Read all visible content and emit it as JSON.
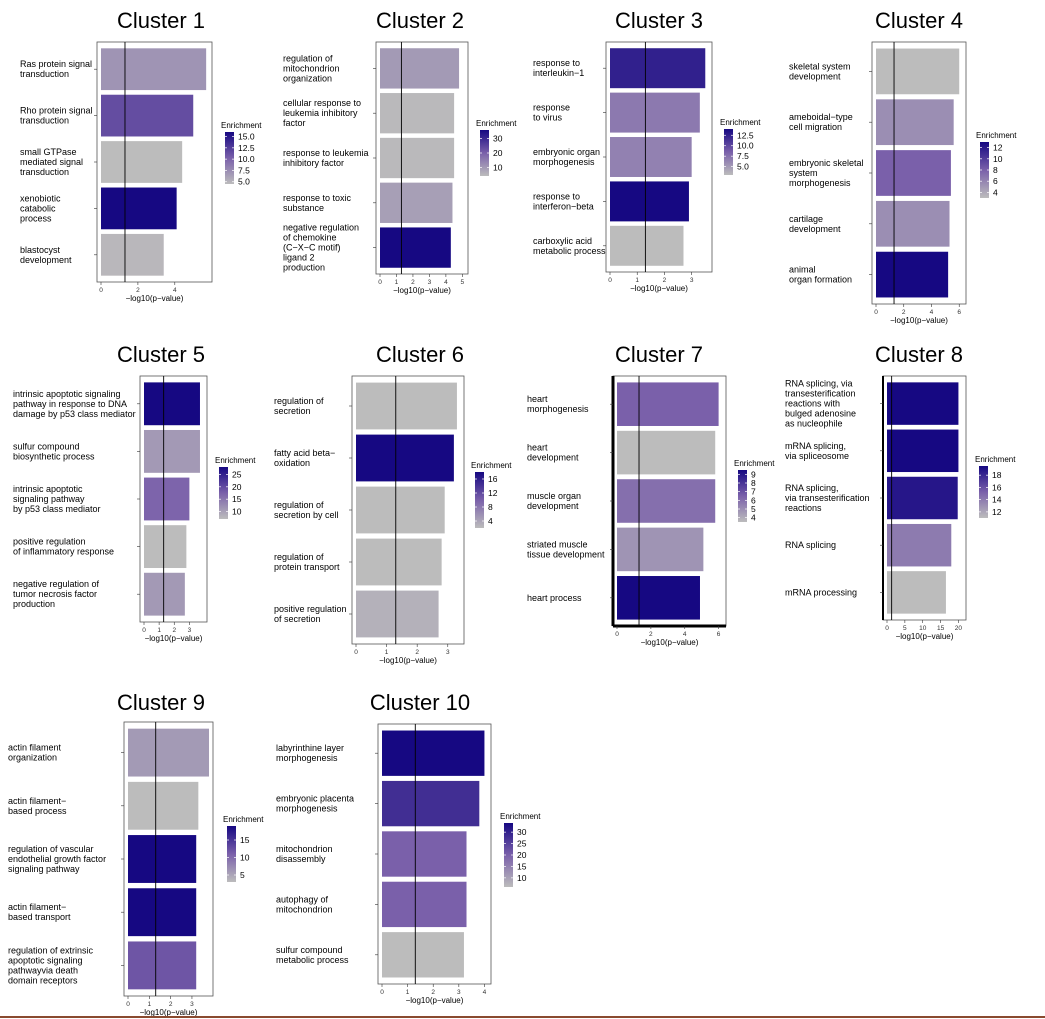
{
  "chart_data": [
    {
      "type": "bar",
      "title": "Cluster 1",
      "xlabel": "−log10(p−value)",
      "xticks": [
        0,
        2,
        4
      ],
      "xlim": [
        0,
        5.8
      ],
      "threshold": 1.3,
      "legend_title": "Enrichment",
      "legend_ticks": [
        15.0,
        12.5,
        10.0,
        7.5,
        5.0
      ],
      "legend_tick_labels": [
        "15.0",
        "12.5",
        "10.0",
        "7.5",
        "5.0"
      ],
      "enrichment_range": [
        4.5,
        16
      ],
      "categories": [
        [
          "Ras protein signal",
          "transduction"
        ],
        [
          "Rho protein signal",
          "transduction"
        ],
        [
          "small GTPase",
          "mediated signal",
          "transduction"
        ],
        [
          "xenobiotic",
          "catabolic",
          "process"
        ],
        [
          "blastocyst",
          "development"
        ]
      ],
      "values": [
        5.7,
        5.0,
        4.4,
        4.1,
        3.4
      ],
      "enrichment": [
        7,
        11.5,
        4.5,
        16,
        4.8
      ]
    },
    {
      "type": "bar",
      "title": "Cluster 2",
      "xlabel": "−log10(p−value)",
      "xticks": [
        0,
        1,
        2,
        3,
        4,
        5
      ],
      "xlim": [
        0,
        5.1
      ],
      "threshold": 1.3,
      "legend_title": "Enrichment",
      "legend_ticks": [
        30,
        20,
        10
      ],
      "legend_tick_labels": [
        "30",
        "20",
        "10"
      ],
      "enrichment_range": [
        4,
        36
      ],
      "categories": [
        [
          "regulation of",
          "mitochondrion",
          "organization"
        ],
        [
          "cellular response to",
          "leukemia inhibitory",
          "factor"
        ],
        [
          "response to leukemia",
          "inhibitory factor"
        ],
        [
          "response to toxic",
          "substance"
        ],
        [
          "negative regulation",
          "of chemokine",
          "(C−X−C motif)",
          "ligand 2",
          "production"
        ]
      ],
      "values": [
        4.8,
        4.5,
        4.5,
        4.4,
        4.3
      ],
      "enrichment": [
        10,
        4.5,
        4.5,
        9,
        36
      ]
    },
    {
      "type": "bar",
      "title": "Cluster 3",
      "xlabel": "−log10(p−value)",
      "xticks": [
        0,
        1,
        2,
        3
      ],
      "xlim": [
        0,
        3.6
      ],
      "threshold": 1.3,
      "legend_title": "Enrichment",
      "legend_ticks": [
        12.5,
        10.0,
        7.5,
        5.0
      ],
      "legend_tick_labels": [
        "12.5",
        "10.0",
        "7.5",
        "5.0"
      ],
      "enrichment_range": [
        3,
        14
      ],
      "categories": [
        [
          "response to",
          "interleukin−1"
        ],
        [
          "response",
          "to virus"
        ],
        [
          "embryonic organ",
          "morphogenesis"
        ],
        [
          "response to",
          "interferon−beta"
        ],
        [
          "carboxylic acid",
          "metabolic process"
        ]
      ],
      "values": [
        3.5,
        3.3,
        3.0,
        2.9,
        2.7
      ],
      "enrichment": [
        12.5,
        7,
        6.5,
        14,
        3
      ]
    },
    {
      "type": "bar",
      "title": "Cluster 4",
      "xlabel": "−log10(p−value)",
      "xticks": [
        0,
        2,
        4,
        6
      ],
      "xlim": [
        0,
        6.2
      ],
      "threshold": 1.3,
      "legend_title": "Enrichment",
      "legend_ticks": [
        12,
        10,
        8,
        6,
        4
      ],
      "legend_tick_labels": [
        "12",
        "10",
        "8",
        "6",
        "4"
      ],
      "enrichment_range": [
        3,
        13
      ],
      "categories": [
        [
          "skeletal system",
          "development"
        ],
        [
          "ameboidal−type",
          "cell migration"
        ],
        [
          "embryonic skeletal",
          "system",
          "morphogenesis"
        ],
        [
          "cartilage",
          "development"
        ],
        [
          "animal",
          "organ formation"
        ]
      ],
      "values": [
        6.0,
        5.6,
        5.4,
        5.3,
        5.2
      ],
      "enrichment": [
        3,
        5.5,
        8,
        5.5,
        13
      ]
    },
    {
      "type": "bar",
      "title": "Cluster 5",
      "xlabel": "−log10(p−value)",
      "xticks": [
        0,
        1,
        2,
        3
      ],
      "xlim": [
        0,
        3.9
      ],
      "threshold": 1.3,
      "legend_title": "Enrichment",
      "legend_ticks": [
        25,
        20,
        15,
        10
      ],
      "legend_tick_labels": [
        "25",
        "20",
        "15",
        "10"
      ],
      "enrichment_range": [
        7,
        28
      ],
      "categories": [
        [
          "intrinsic apoptotic signaling",
          "pathway in response to DNA",
          "damage by p53 class mediator"
        ],
        [
          "sulfur compound",
          "biosynthetic process"
        ],
        [
          "intrinsic apoptotic",
          "signaling pathway",
          "by p53 class mediator"
        ],
        [
          "positive regulation",
          "of inflammatory response"
        ],
        [
          "negative regulation of",
          "tumor necrosis factor",
          "production"
        ]
      ],
      "values": [
        3.7,
        3.7,
        3.0,
        2.8,
        2.7
      ],
      "enrichment": [
        28,
        11,
        17,
        7,
        11
      ]
    },
    {
      "type": "bar",
      "title": "Cluster 6",
      "xlabel": "−log10(p−value)",
      "xticks": [
        0,
        1,
        2,
        3
      ],
      "xlim": [
        0,
        3.4
      ],
      "threshold": 1.3,
      "legend_title": "Enrichment",
      "legend_ticks": [
        16,
        12,
        8,
        4
      ],
      "legend_tick_labels": [
        "16",
        "12",
        "8",
        "4"
      ],
      "enrichment_range": [
        2,
        18
      ],
      "categories": [
        [
          "regulation of",
          "secretion"
        ],
        [
          "fatty acid beta−",
          "oxidation"
        ],
        [
          "regulation of",
          "secretion by cell"
        ],
        [
          "regulation of",
          "protein transport"
        ],
        [
          "positive regulation",
          "of secretion"
        ]
      ],
      "values": [
        3.3,
        3.2,
        2.9,
        2.8,
        2.7
      ],
      "enrichment": [
        2,
        18,
        2,
        2,
        3
      ]
    },
    {
      "type": "bar",
      "title": "Cluster 7",
      "xlabel": "−log10(p−value)",
      "xticks": [
        0,
        2,
        4,
        6
      ],
      "xlim": [
        0,
        6.2
      ],
      "threshold": 1.3,
      "legend_title": "Enrichment",
      "legend_ticks": [
        9,
        8,
        7,
        6,
        5,
        4
      ],
      "legend_tick_labels": [
        "9",
        "8",
        "7",
        "6",
        "5",
        "4"
      ],
      "enrichment_range": [
        3.5,
        9.5
      ],
      "categories": [
        [
          "heart",
          "morphogenesis"
        ],
        [
          "heart",
          "development"
        ],
        [
          "muscle organ",
          "development"
        ],
        [
          "striated muscle",
          "tissue development"
        ],
        [
          "heart process"
        ]
      ],
      "values": [
        6.0,
        5.8,
        5.8,
        5.1,
        4.9
      ],
      "enrichment": [
        6.5,
        3.5,
        6,
        4.8,
        9.5
      ]
    },
    {
      "type": "bar",
      "title": "Cluster 8",
      "xlabel": "−log10(p−value)",
      "xticks": [
        0,
        5,
        10,
        15,
        20
      ],
      "xlim": [
        0,
        21
      ],
      "threshold": 1.3,
      "legend_title": "Enrichment",
      "legend_ticks": [
        18,
        16,
        14,
        12
      ],
      "legend_tick_labels": [
        "18",
        "16",
        "14",
        "12"
      ],
      "enrichment_range": [
        11,
        19.5
      ],
      "categories": [
        [
          "RNA splicing, via",
          "transesterification",
          "reactions with",
          "bulged adenosine",
          "as nucleophile"
        ],
        [
          "mRNA splicing,",
          "via spliceosome"
        ],
        [
          "RNA splicing,",
          "via transesterification",
          "reactions"
        ],
        [
          "RNA splicing"
        ],
        [
          "mRNA processing"
        ]
      ],
      "values": [
        20.0,
        20.0,
        19.8,
        18.0,
        16.5
      ],
      "enrichment": [
        19.5,
        19.5,
        18.8,
        14,
        11
      ]
    },
    {
      "type": "bar",
      "title": "Cluster 9",
      "xlabel": "−log10(p−value)",
      "xticks": [
        0,
        1,
        2,
        3
      ],
      "xlim": [
        0,
        3.8
      ],
      "threshold": 1.3,
      "legend_title": "Enrichment",
      "legend_ticks": [
        15,
        10,
        5
      ],
      "legend_tick_labels": [
        "15",
        "10",
        "5"
      ],
      "enrichment_range": [
        3,
        19
      ],
      "categories": [
        [
          "actin filament",
          "organization"
        ],
        [
          "actin filament−",
          "based process"
        ],
        [
          "regulation of vascular",
          "endothelial growth factor",
          "signaling pathway"
        ],
        [
          "actin filament−",
          "based transport"
        ],
        [
          "regulation of extrinsic",
          "apoptotic signaling",
          "pathwayvia death",
          "domain receptors"
        ]
      ],
      "values": [
        3.8,
        3.3,
        3.2,
        3.2,
        3.2
      ],
      "enrichment": [
        6,
        3,
        19,
        19,
        12
      ]
    },
    {
      "type": "bar",
      "title": "Cluster 10",
      "xlabel": "−log10(p−value)",
      "xticks": [
        0,
        1,
        2,
        3,
        4
      ],
      "xlim": [
        0,
        4.1
      ],
      "threshold": 1.3,
      "legend_title": "Enrichment",
      "legend_ticks": [
        30,
        25,
        20,
        15,
        10
      ],
      "legend_tick_labels": [
        "30",
        "25",
        "20",
        "15",
        "10"
      ],
      "enrichment_range": [
        6,
        34
      ],
      "categories": [
        [
          "labyrinthine layer",
          "morphogenesis"
        ],
        [
          "embryonic placenta",
          "morphogenesis"
        ],
        [
          "mitochondrion",
          "disassembly"
        ],
        [
          "autophagy of",
          "mitochondrion"
        ],
        [
          "sulfur compound",
          "metabolic process"
        ]
      ],
      "values": [
        4.0,
        3.8,
        3.3,
        3.3,
        3.2
      ],
      "enrichment": [
        34,
        28,
        20,
        20,
        6
      ]
    }
  ]
}
